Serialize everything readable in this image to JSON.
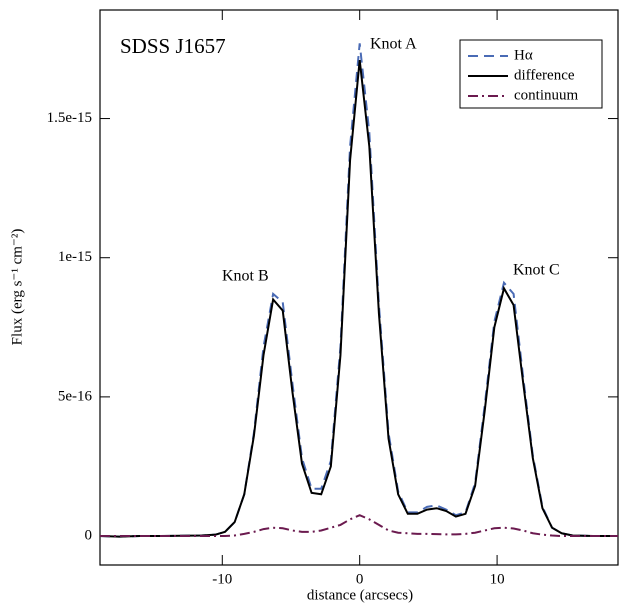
{
  "chart_data": {
    "type": "line",
    "xlabel": "distance (arcsecs)",
    "ylabel": "Flux (erg s⁻¹ cm⁻²)",
    "annotations": [
      "SDSS J1657",
      "Knot A",
      "Knot B",
      "Knot C"
    ],
    "x": [
      -18.9,
      -17.5,
      -16,
      -14.5,
      -13,
      -11.5,
      -10.5,
      -9.8,
      -9.1,
      -8.4,
      -7.7,
      -7.0,
      -6.3,
      -5.6,
      -4.9,
      -4.2,
      -3.5,
      -2.8,
      -2.1,
      -1.4,
      -0.7,
      0,
      0.7,
      1.4,
      2.1,
      2.8,
      3.5,
      4.2,
      4.9,
      5.6,
      6.3,
      7.0,
      7.7,
      8.4,
      9.1,
      9.8,
      10.5,
      11.2,
      11.9,
      12.6,
      13.3,
      14.0,
      14.7,
      15.5,
      17,
      18.8
    ],
    "series": [
      {
        "name": "Hα",
        "color": "#4a6bb5",
        "dash": "10,6",
        "values": [
          0,
          -2e-18,
          0,
          0,
          1e-18,
          2e-18,
          5e-18,
          1.5e-17,
          5e-17,
          1.5e-16,
          3.7e-16,
          6.8e-16,
          8.7e-16,
          8.4e-16,
          5.5e-16,
          2.8e-16,
          1.7e-16,
          1.7e-16,
          2.7e-16,
          6.8e-16,
          1.4e-15,
          1.77e-15,
          1.45e-15,
          8.3e-16,
          3.7e-16,
          1.6e-16,
          8.5e-17,
          8.5e-17,
          1.05e-16,
          1.1e-16,
          9.5e-17,
          7.5e-17,
          8.5e-17,
          1.9e-16,
          4.7e-16,
          7.7e-16,
          9.1e-16,
          8.7e-16,
          5.7e-16,
          2.9e-16,
          1.05e-16,
          3e-17,
          1e-17,
          2e-18,
          0,
          0
        ]
      },
      {
        "name": "difference",
        "color": "#000000",
        "dash": "none",
        "values": [
          0,
          -2e-18,
          0,
          0,
          1e-18,
          2e-18,
          5e-18,
          1.5e-17,
          5e-17,
          1.5e-16,
          3.6e-16,
          6.5e-16,
          8.5e-16,
          8.1e-16,
          5.2e-16,
          2.6e-16,
          1.55e-16,
          1.5e-16,
          2.5e-16,
          6.5e-16,
          1.35e-15,
          1.71e-15,
          1.4e-15,
          8e-16,
          3.5e-16,
          1.5e-16,
          8e-17,
          8e-17,
          9.5e-17,
          1e-16,
          9e-17,
          7e-17,
          8e-17,
          1.8e-16,
          4.5e-16,
          7.5e-16,
          8.9e-16,
          8.3e-16,
          5.5e-16,
          2.8e-16,
          1e-16,
          3e-17,
          1e-17,
          2e-18,
          0,
          0
        ]
      },
      {
        "name": "continuum",
        "color": "#6b1a4f",
        "dash": "10,4,2,4",
        "values": [
          0,
          0,
          0,
          0,
          0,
          0,
          0,
          0,
          2e-18,
          8e-18,
          1.5e-17,
          2.5e-17,
          3e-17,
          2.8e-17,
          2e-17,
          1.5e-17,
          1.5e-17,
          2e-17,
          3e-17,
          4e-17,
          6e-17,
          7.5e-17,
          6e-17,
          4e-17,
          2e-17,
          1.2e-17,
          1e-17,
          8e-18,
          8e-18,
          7e-18,
          6e-18,
          6e-18,
          8e-18,
          1.2e-17,
          2e-17,
          2.8e-17,
          3e-17,
          2.7e-17,
          2e-17,
          1e-17,
          5e-18,
          2e-18,
          0,
          0,
          0,
          0
        ]
      }
    ],
    "xlim": [
      -18.9,
      18.8
    ],
    "xticks": [
      -10,
      0,
      10
    ],
    "ylim": [
      -1.04e-16,
      1.89e-15
    ],
    "yticks": [
      0,
      {
        "value": 5e-16,
        "label": "5e-16"
      },
      {
        "value": 1e-15,
        "label": "1e-15"
      },
      {
        "value": 1.5e-15,
        "label": "1.5e-15"
      }
    ],
    "legend": "upper right"
  }
}
